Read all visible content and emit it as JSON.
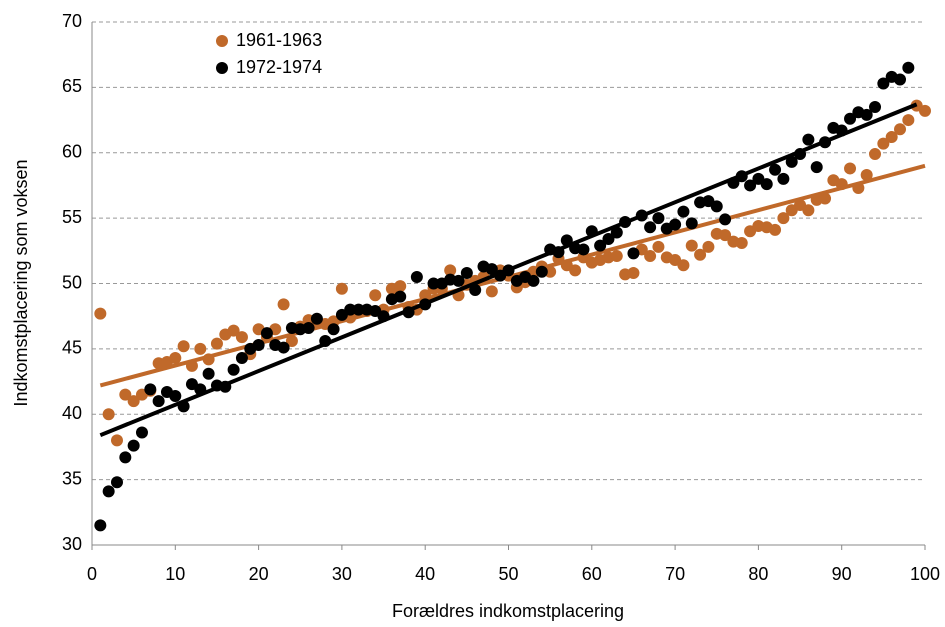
{
  "chart_data": {
    "type": "scatter",
    "xlabel": "Forældres indkomstplacering",
    "ylabel": "Indkomstplacering som voksen",
    "xlim": [
      0,
      100
    ],
    "xticks": [
      0,
      10,
      20,
      30,
      40,
      50,
      60,
      70,
      80,
      90,
      100
    ],
    "ylim": [
      30,
      70
    ],
    "yticks": [
      30,
      35,
      40,
      45,
      50,
      55,
      60,
      65,
      70
    ],
    "grid": true,
    "legend": "upper left",
    "series": [
      {
        "name": "1961-1963",
        "color": "#c0692a",
        "x": [
          1,
          2,
          3,
          4,
          5,
          6,
          7,
          8,
          9,
          10,
          11,
          12,
          13,
          14,
          15,
          16,
          17,
          18,
          19,
          20,
          21,
          22,
          23,
          24,
          25,
          26,
          27,
          28,
          29,
          30,
          31,
          32,
          33,
          34,
          35,
          36,
          37,
          38,
          39,
          40,
          41,
          42,
          43,
          44,
          45,
          46,
          47,
          48,
          49,
          50,
          51,
          52,
          53,
          54,
          55,
          56,
          57,
          58,
          59,
          60,
          61,
          62,
          63,
          64,
          65,
          66,
          67,
          68,
          69,
          70,
          71,
          72,
          73,
          74,
          75,
          76,
          77,
          78,
          79,
          80,
          81,
          82,
          83,
          84,
          85,
          86,
          87,
          88,
          89,
          90,
          91,
          92,
          93,
          94,
          95,
          96,
          97,
          98,
          99,
          100
        ],
        "values": [
          47.7,
          40.0,
          38.0,
          41.5,
          41.0,
          41.5,
          41.8,
          43.9,
          44.0,
          44.3,
          45.2,
          43.7,
          45.0,
          44.2,
          45.4,
          46.1,
          46.4,
          45.9,
          44.6,
          46.5,
          45.9,
          46.5,
          48.4,
          45.6,
          46.7,
          47.2,
          47.0,
          46.9,
          47.1,
          49.6,
          47.4,
          47.8,
          47.9,
          49.1,
          48.0,
          49.6,
          49.8,
          48.2,
          48.0,
          49.1,
          49.6,
          49.6,
          51.0,
          49.1,
          49.9,
          50.2,
          50.5,
          49.4,
          51.0,
          50.6,
          49.7,
          50.1,
          50.9,
          51.3,
          50.9,
          51.9,
          51.4,
          51.0,
          52.0,
          51.6,
          51.8,
          52.0,
          52.1,
          50.7,
          50.8,
          52.6,
          52.1,
          52.8,
          52.0,
          51.8,
          51.4,
          52.9,
          52.2,
          52.8,
          53.8,
          53.7,
          53.2,
          53.1,
          54.0,
          54.4,
          54.3,
          54.1,
          55.0,
          55.6,
          56.0,
          55.6,
          56.4,
          56.5,
          57.9,
          57.6,
          58.8,
          57.3,
          58.3,
          59.9,
          60.7,
          61.2,
          61.8,
          62.5,
          63.6,
          63.2
        ],
        "trend": {
          "x": [
            1,
            100
          ],
          "values": [
            42.2,
            59.0
          ]
        }
      },
      {
        "name": "1972-1974",
        "color": "#000000",
        "x": [
          1,
          2,
          3,
          4,
          5,
          6,
          7,
          8,
          9,
          10,
          11,
          12,
          13,
          14,
          15,
          16,
          17,
          18,
          19,
          20,
          21,
          22,
          23,
          24,
          25,
          26,
          27,
          28,
          29,
          30,
          31,
          32,
          33,
          34,
          35,
          36,
          37,
          38,
          39,
          40,
          41,
          42,
          43,
          44,
          45,
          46,
          47,
          48,
          49,
          50,
          51,
          52,
          53,
          54,
          55,
          56,
          57,
          58,
          59,
          60,
          61,
          62,
          63,
          64,
          65,
          66,
          67,
          68,
          69,
          70,
          71,
          72,
          73,
          74,
          75,
          76,
          77,
          78,
          79,
          80,
          81,
          82,
          83,
          84,
          85,
          86,
          87,
          88,
          89,
          90,
          91,
          92,
          93,
          94,
          95,
          96,
          97,
          98
        ],
        "values": [
          31.5,
          34.1,
          34.8,
          36.7,
          37.6,
          38.6,
          41.9,
          41.0,
          41.7,
          41.4,
          40.6,
          42.3,
          41.9,
          43.1,
          42.2,
          42.1,
          43.4,
          44.3,
          45.0,
          45.3,
          46.2,
          45.3,
          45.1,
          46.6,
          46.5,
          46.6,
          47.3,
          45.6,
          46.5,
          47.6,
          48.0,
          48.0,
          48.0,
          47.9,
          47.5,
          48.8,
          49.0,
          47.8,
          50.5,
          48.4,
          50.0,
          50.0,
          50.3,
          50.2,
          50.8,
          49.5,
          51.3,
          51.1,
          50.6,
          51.0,
          50.2,
          50.5,
          50.2,
          50.9,
          52.6,
          52.4,
          53.3,
          52.7,
          52.6,
          54.0,
          52.9,
          53.4,
          53.9,
          54.7,
          52.3,
          55.2,
          54.3,
          55.0,
          54.2,
          54.5,
          55.5,
          54.6,
          56.2,
          56.3,
          55.9,
          54.9,
          57.7,
          58.2,
          57.5,
          58.0,
          57.6,
          58.7,
          58.0,
          59.3,
          59.9,
          61.0,
          58.9,
          60.8,
          61.9,
          61.7,
          62.6,
          63.1,
          62.9,
          63.5,
          65.3,
          65.8,
          65.6,
          66.5
        ],
        "trend": {
          "x": [
            1,
            99
          ],
          "values": [
            38.4,
            63.7
          ]
        }
      }
    ]
  }
}
